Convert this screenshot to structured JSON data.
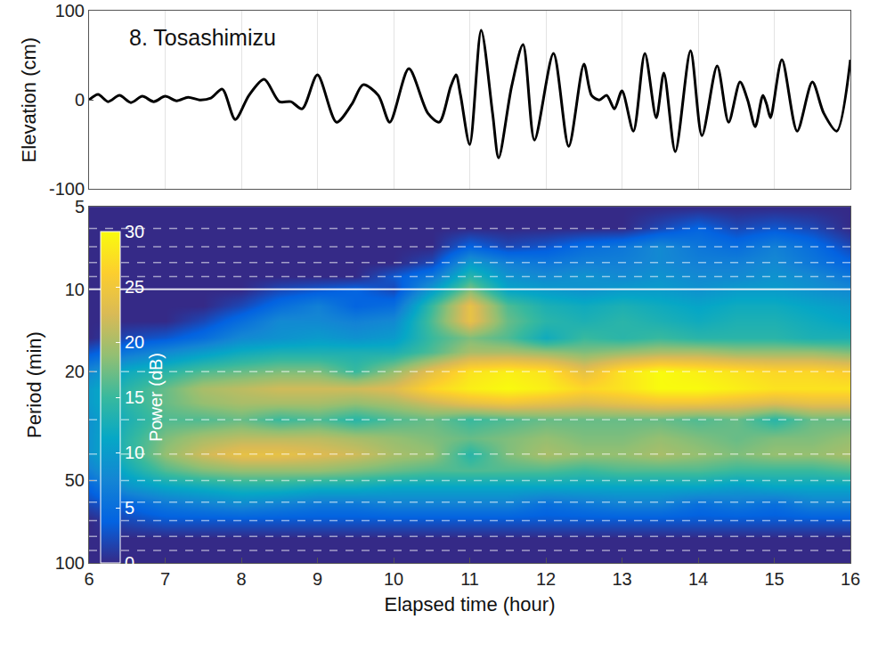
{
  "chart_data": [
    {
      "type": "line",
      "title": "8. Tosashimizu",
      "ylabel": "Elevation (cm)",
      "color": "#000000",
      "grid": true,
      "tick_labels": "y",
      "x": [
        6.0,
        6.12,
        6.25,
        6.4,
        6.55,
        6.7,
        6.85,
        7.0,
        7.15,
        7.3,
        7.45,
        7.6,
        7.75,
        7.92,
        8.1,
        8.3,
        8.5,
        8.65,
        8.8,
        9.0,
        9.25,
        9.45,
        9.6,
        9.8,
        9.95,
        10.2,
        10.45,
        10.6,
        10.75,
        10.82,
        10.88,
        11.0,
        11.15,
        11.3,
        11.38,
        11.55,
        11.7,
        11.85,
        12.1,
        12.3,
        12.5,
        12.6,
        12.7,
        12.8,
        12.9,
        13.0,
        13.15,
        13.3,
        13.45,
        13.55,
        13.7,
        13.9,
        14.05,
        14.25,
        14.4,
        14.55,
        14.65,
        14.75,
        14.85,
        14.9,
        14.95,
        15.1,
        15.3,
        15.5,
        15.65,
        15.82,
        16.0
      ],
      "values": [
        0,
        6,
        -2,
        5,
        -3,
        4,
        -2,
        4,
        -1,
        3,
        0,
        2,
        12,
        -22,
        5,
        23,
        -2,
        -2,
        -10,
        28,
        -25,
        -5,
        17,
        5,
        -25,
        35,
        -15,
        -25,
        15,
        28,
        5,
        -50,
        78,
        -15,
        -65,
        15,
        62,
        -45,
        52,
        -52,
        40,
        5,
        0,
        5,
        -10,
        10,
        -35,
        52,
        -20,
        30,
        -58,
        55,
        -40,
        38,
        -25,
        20,
        0,
        -30,
        5,
        -5,
        -20,
        45,
        -35,
        20,
        -15,
        -35,
        45
      ],
      "xlim": [
        6,
        16
      ],
      "xticks": [
        6,
        7,
        8,
        9,
        10,
        11,
        12,
        13,
        14,
        15,
        16
      ],
      "ylim": [
        -100,
        100
      ],
      "yticks": [
        -100,
        0,
        100
      ]
    },
    {
      "type": "heatmap",
      "xlabel": "Elapsed time (hour)",
      "ylabel": "Period (min)",
      "log": "y",
      "grid": true,
      "x": [
        6,
        6.5,
        7,
        7.5,
        8,
        8.5,
        9,
        9.5,
        10,
        10.5,
        11,
        11.5,
        12,
        12.5,
        13,
        13.5,
        14,
        14.5,
        15,
        15.5,
        16
      ],
      "y": [
        5,
        6,
        7,
        8,
        9,
        10,
        11.5,
        13,
        15,
        17,
        20,
        23,
        26,
        30,
        35,
        40,
        46,
        53,
        61,
        70,
        81,
        100
      ],
      "z": [
        [
          0,
          0,
          0,
          0,
          0,
          0,
          0,
          0,
          0,
          0,
          0,
          0,
          0,
          0,
          0,
          0,
          0,
          0,
          0,
          0,
          0
        ],
        [
          0,
          0,
          0,
          0,
          0,
          0,
          0,
          0,
          0,
          0,
          0,
          0,
          0,
          0,
          0,
          2,
          4,
          2,
          3,
          2,
          0
        ],
        [
          0,
          0,
          0,
          0,
          0,
          0,
          0,
          0,
          0,
          0,
          4,
          2,
          3,
          5,
          6,
          8,
          6,
          5,
          7,
          5,
          2
        ],
        [
          0,
          0,
          0,
          0,
          0,
          0,
          0,
          0,
          0,
          2,
          10,
          7,
          6,
          7,
          7,
          8,
          7,
          7,
          8,
          6,
          4
        ],
        [
          0,
          0,
          0,
          0,
          0,
          0,
          0,
          0,
          3,
          6,
          14,
          9,
          8,
          9,
          8,
          9,
          8,
          8,
          9,
          8,
          6
        ],
        [
          0,
          0,
          0,
          0,
          0,
          2,
          3,
          4,
          2,
          10,
          18,
          11,
          10,
          9,
          10,
          10,
          9,
          10,
          10,
          9,
          8
        ],
        [
          0,
          0,
          0,
          0,
          2,
          5,
          7,
          4,
          5,
          15,
          24,
          16,
          13,
          12,
          13,
          12,
          11,
          12,
          12,
          11,
          10
        ],
        [
          0,
          0,
          0,
          2,
          5,
          8,
          8,
          7,
          8,
          16,
          24,
          17,
          14,
          13,
          14,
          13,
          12,
          13,
          13,
          12,
          11
        ],
        [
          0,
          2,
          3,
          5,
          8,
          9,
          10,
          9,
          10,
          15,
          18,
          16,
          12,
          15,
          14,
          15,
          14,
          14,
          14,
          13,
          13
        ],
        [
          3,
          6,
          8,
          10,
          12,
          13,
          13,
          13,
          13,
          16,
          20,
          20,
          19,
          18,
          19,
          20,
          20,
          19,
          19,
          19,
          18
        ],
        [
          8,
          12,
          14,
          16,
          17,
          18,
          18,
          15,
          19,
          24,
          28,
          29,
          28,
          24,
          28,
          30,
          29,
          28,
          27,
          27,
          26
        ],
        [
          10,
          14,
          17,
          20,
          21,
          22,
          22,
          22,
          23,
          27,
          29,
          30,
          29,
          27,
          28,
          30,
          30,
          29,
          28,
          28,
          28
        ],
        [
          10,
          14,
          17,
          19,
          20,
          20,
          20,
          19,
          20,
          22,
          24,
          25,
          24,
          23,
          24,
          25,
          25,
          24,
          23,
          24,
          24
        ],
        [
          9,
          13,
          16,
          16,
          17,
          15,
          16,
          14,
          16,
          17,
          15,
          16,
          17,
          17,
          17,
          17,
          16,
          17,
          14,
          17,
          17
        ],
        [
          9,
          14,
          18,
          20,
          21,
          21,
          21,
          20,
          19,
          18,
          17,
          18,
          19,
          18,
          18,
          19,
          18,
          17,
          18,
          18,
          19
        ],
        [
          9,
          14,
          19,
          22,
          24,
          24,
          23,
          22,
          20,
          19,
          14,
          18,
          20,
          19,
          19,
          20,
          19,
          18,
          19,
          19,
          20
        ],
        [
          7,
          12,
          16,
          18,
          19,
          19,
          19,
          18,
          17,
          16,
          16,
          16,
          16,
          15,
          16,
          16,
          16,
          15,
          15,
          15,
          16
        ],
        [
          4,
          9,
          11,
          12,
          13,
          13,
          12,
          12,
          11,
          11,
          11,
          11,
          11,
          11,
          11,
          11,
          11,
          10,
          11,
          11,
          11
        ],
        [
          2,
          4,
          6,
          7,
          8,
          7,
          6,
          6,
          7,
          7,
          7,
          7,
          5,
          6,
          7,
          7,
          5,
          6,
          5,
          7,
          7
        ],
        [
          0,
          2,
          3,
          3,
          3,
          3,
          3,
          3,
          3,
          3,
          3,
          3,
          3,
          3,
          3,
          3,
          3,
          3,
          3,
          3,
          3
        ],
        [
          0,
          0,
          0,
          0,
          0,
          0,
          0,
          0,
          0,
          0,
          0,
          0,
          0,
          0,
          0,
          0,
          0,
          0,
          0,
          0,
          0
        ],
        [
          0,
          0,
          0,
          0,
          0,
          0,
          0,
          0,
          0,
          0,
          0,
          0,
          0,
          0,
          0,
          0,
          0,
          0,
          0,
          0,
          0
        ]
      ],
      "xlim": [
        6,
        16
      ],
      "xticks": [
        6,
        7,
        8,
        9,
        10,
        11,
        12,
        13,
        14,
        15,
        16
      ],
      "ylim": [
        5,
        100
      ],
      "yticks": [
        5,
        10,
        20,
        50,
        100
      ],
      "colorbar": {
        "label": "Power (dB)",
        "range": [
          0,
          30
        ],
        "ticks": [
          0,
          5,
          10,
          15,
          20,
          25,
          30
        ]
      }
    }
  ]
}
